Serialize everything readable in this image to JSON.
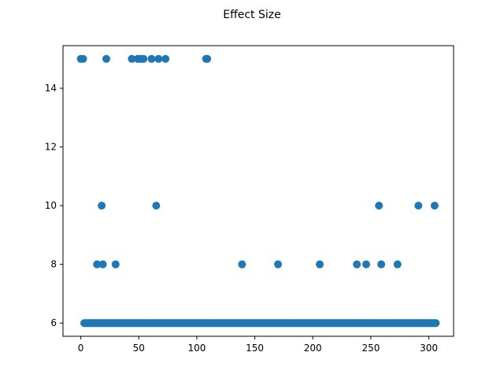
{
  "chart_data": {
    "type": "scatter",
    "title": "Effect Size",
    "xlabel": "",
    "ylabel": "",
    "xlim": [
      -15.35,
      321.35
    ],
    "ylim": [
      5.55,
      15.45
    ],
    "xticks": [
      0,
      50,
      100,
      150,
      200,
      250,
      300
    ],
    "yticks": [
      6,
      8,
      10,
      12,
      14
    ],
    "grid": false,
    "marker_color": "#1f77b4",
    "points": [
      [
        0,
        15
      ],
      [
        2,
        15
      ],
      [
        22,
        15
      ],
      [
        44,
        15
      ],
      [
        49,
        15
      ],
      [
        51,
        15
      ],
      [
        53,
        15
      ],
      [
        54,
        15
      ],
      [
        61,
        15
      ],
      [
        67,
        15
      ],
      [
        73,
        15
      ],
      [
        108,
        15
      ],
      [
        109,
        15
      ],
      [
        18,
        10
      ],
      [
        65,
        10
      ],
      [
        257,
        10
      ],
      [
        291,
        10
      ],
      [
        305,
        10
      ],
      [
        14,
        8
      ],
      [
        19,
        8
      ],
      [
        30,
        8
      ],
      [
        139,
        8
      ],
      [
        170,
        8
      ],
      [
        206,
        8
      ],
      [
        238,
        8
      ],
      [
        246,
        8
      ],
      [
        259,
        8
      ],
      [
        273,
        8
      ]
    ],
    "baseline_series": {
      "y": 6,
      "x_start": 3,
      "x_end": 306,
      "step": 1
    }
  }
}
